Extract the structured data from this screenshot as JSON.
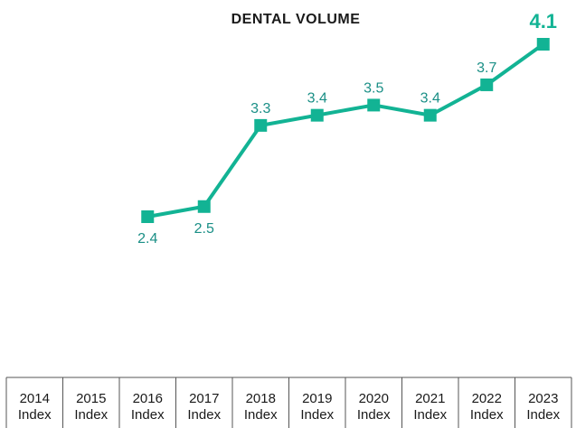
{
  "chart_data": {
    "type": "line",
    "title": "DENTAL VOLUME",
    "categories": [
      "2014 Index",
      "2015 Index",
      "2016 Index",
      "2017 Index",
      "2018 Index",
      "2019 Index",
      "2020 Index",
      "2021 Index",
      "2022 Index",
      "2023 Index"
    ],
    "category_lines": [
      [
        "2014",
        "Index"
      ],
      [
        "2015",
        "Index"
      ],
      [
        "2016",
        "Index"
      ],
      [
        "2017",
        "Index"
      ],
      [
        "2018",
        "Index"
      ],
      [
        "2019",
        "Index"
      ],
      [
        "2020",
        "Index"
      ],
      [
        "2021",
        "Index"
      ],
      [
        "2022",
        "Index"
      ],
      [
        "2023",
        "Index"
      ]
    ],
    "series": [
      {
        "values": [
          null,
          null,
          2.4,
          2.5,
          3.3,
          3.4,
          3.5,
          3.4,
          3.7,
          4.1
        ]
      }
    ],
    "data_labels": [
      null,
      null,
      "2.4",
      "2.5",
      "3.3",
      "3.4",
      "3.5",
      "3.4",
      "3.7",
      "4.1"
    ],
    "xlabel": "",
    "ylabel": "",
    "grid": false,
    "legend": "none",
    "colors": {
      "line": "#12b394",
      "label": "#1a8f86",
      "text": "#1a1a1a",
      "axis": "#555555"
    }
  }
}
